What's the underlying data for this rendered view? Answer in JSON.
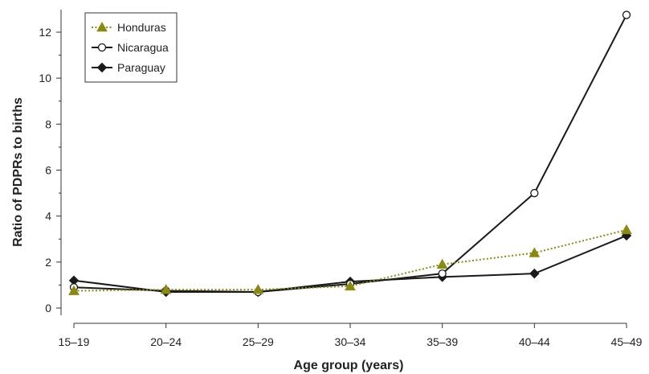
{
  "chart_data": {
    "type": "line",
    "title": "",
    "xlabel": "Age group (years)",
    "ylabel": "Ratio of PDPRs to births",
    "categories": [
      "15–19",
      "20–24",
      "25–29",
      "30–34",
      "35–39",
      "40–44",
      "45–49"
    ],
    "ylim": [
      -0.6,
      13.0
    ],
    "yticks": [
      0,
      2,
      4,
      6,
      8,
      10,
      12
    ],
    "grid": false,
    "legend_position": "top-left",
    "series": [
      {
        "name": "Honduras",
        "values": [
          0.75,
          0.8,
          0.8,
          0.95,
          1.9,
          2.4,
          3.4
        ],
        "color": "#8b8a10",
        "line_style": "dotted",
        "marker": "triangle"
      },
      {
        "name": "Nicaragua",
        "values": [
          0.9,
          0.75,
          0.7,
          1.05,
          1.5,
          5.0,
          12.75
        ],
        "color": "#1a1a1a",
        "line_style": "solid",
        "marker": "open-circle"
      },
      {
        "name": "Paraguay",
        "values": [
          1.2,
          0.7,
          0.7,
          1.15,
          1.35,
          1.5,
          3.15
        ],
        "color": "#1a1a1a",
        "line_style": "solid",
        "marker": "filled-diamond"
      }
    ]
  }
}
